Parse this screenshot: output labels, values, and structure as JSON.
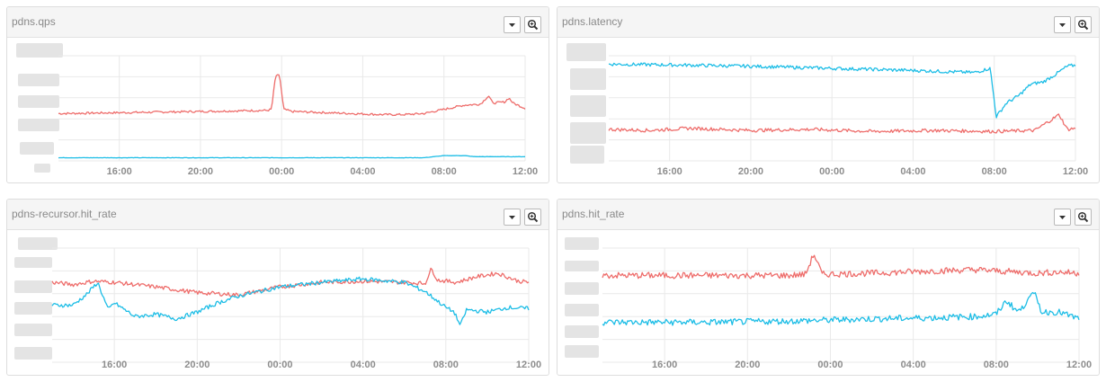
{
  "colors": {
    "series_a": "#ee6d6b",
    "series_b": "#1cbde6"
  },
  "icons": {
    "dropdown": "caret-down-icon",
    "zoom": "zoom-in-icon"
  },
  "panels": [
    {
      "title": "pdns.qps"
    },
    {
      "title": "pdns.latency"
    },
    {
      "title": "pdns-recursor.hit_rate"
    },
    {
      "title": "pdns.hit_rate"
    }
  ],
  "chart_data": [
    {
      "type": "line",
      "title": "pdns.qps",
      "x_ticks": [
        "16:00",
        "20:00",
        "00:00",
        "04:00",
        "08:00",
        "12:00"
      ],
      "x_tick_hours": [
        16,
        20,
        24,
        28,
        32,
        36
      ],
      "x_range_hours": [
        13,
        36
      ],
      "ylim": [
        0,
        100
      ],
      "y_tick_labels_visible": false,
      "grid": true,
      "series": [
        {
          "color": "#ee6d6b",
          "key_points": [
            [
              13,
              45
            ],
            [
              20,
              47
            ],
            [
              23,
              48
            ],
            [
              23.3,
              48
            ],
            [
              23.5,
              49
            ],
            [
              23.7,
              81
            ],
            [
              23.9,
              81
            ],
            [
              24.1,
              49
            ],
            [
              24.5,
              47
            ],
            [
              29,
              44
            ],
            [
              30,
              44
            ],
            [
              31,
              45
            ],
            [
              32,
              49
            ],
            [
              33,
              53
            ],
            [
              33.8,
              54
            ],
            [
              34.2,
              62
            ],
            [
              34.4,
              55
            ],
            [
              35,
              56
            ],
            [
              35.2,
              60
            ],
            [
              35.4,
              55
            ],
            [
              36,
              50
            ]
          ]
        },
        {
          "color": "#1cbde6",
          "key_points": [
            [
              13,
              3
            ],
            [
              31,
              3
            ],
            [
              32,
              5
            ],
            [
              33,
              5
            ],
            [
              33.5,
              4
            ],
            [
              36,
              4
            ]
          ]
        }
      ]
    },
    {
      "type": "line",
      "title": "pdns.latency",
      "x_ticks": [
        "16:00",
        "20:00",
        "00:00",
        "04:00",
        "08:00",
        "12:00"
      ],
      "x_tick_hours": [
        16,
        20,
        24,
        28,
        32,
        36
      ],
      "x_range_hours": [
        13,
        36
      ],
      "ylim": [
        0,
        100
      ],
      "y_tick_labels_visible": false,
      "grid": true,
      "series": [
        {
          "color": "#1cbde6",
          "key_points": [
            [
              13,
              92
            ],
            [
              17,
              91
            ],
            [
              20,
              90
            ],
            [
              24,
              88
            ],
            [
              28,
              86
            ],
            [
              31,
              84
            ],
            [
              31.8,
              88
            ],
            [
              32.1,
              42
            ],
            [
              32.6,
              55
            ],
            [
              33.2,
              62
            ],
            [
              33.8,
              73
            ],
            [
              34.4,
              75
            ],
            [
              35,
              82
            ],
            [
              35.6,
              90
            ],
            [
              36,
              91
            ]
          ]
        },
        {
          "color": "#ee6d6b",
          "key_points": [
            [
              13,
              30
            ],
            [
              15,
              29
            ],
            [
              17,
              31
            ],
            [
              20,
              29
            ],
            [
              23,
              30
            ],
            [
              26,
              28
            ],
            [
              29,
              29
            ],
            [
              32,
              28
            ],
            [
              34,
              29
            ],
            [
              35.2,
              44
            ],
            [
              35.6,
              30
            ],
            [
              36,
              31
            ]
          ]
        }
      ]
    },
    {
      "type": "line",
      "title": "pdns-recursor.hit_rate",
      "x_ticks": [
        "16:00",
        "20:00",
        "00:00",
        "04:00",
        "08:00",
        "12:00"
      ],
      "x_tick_hours": [
        16,
        20,
        24,
        28,
        32,
        36
      ],
      "x_range_hours": [
        13,
        36
      ],
      "ylim": [
        0,
        100
      ],
      "y_tick_labels_visible": false,
      "grid": true,
      "series": [
        {
          "color": "#ee6d6b",
          "key_points": [
            [
              13,
              70
            ],
            [
              14,
              68
            ],
            [
              15,
              71
            ],
            [
              16,
              70
            ],
            [
              18,
              66
            ],
            [
              20,
              61
            ],
            [
              22,
              59
            ],
            [
              24,
              66
            ],
            [
              26,
              70
            ],
            [
              28,
              71
            ],
            [
              30,
              70
            ],
            [
              31,
              69
            ],
            [
              31.3,
              82
            ],
            [
              31.6,
              72
            ],
            [
              32.5,
              70
            ],
            [
              33.5,
              75
            ],
            [
              34.5,
              78
            ],
            [
              35.5,
              71
            ],
            [
              36,
              70
            ]
          ]
        },
        {
          "color": "#1cbde6",
          "key_points": [
            [
              13,
              50
            ],
            [
              14,
              50
            ],
            [
              14.7,
              60
            ],
            [
              15.2,
              70
            ],
            [
              15.7,
              46
            ],
            [
              16,
              52
            ],
            [
              17,
              40
            ],
            [
              18,
              42
            ],
            [
              19,
              38
            ],
            [
              20,
              44
            ],
            [
              21,
              52
            ],
            [
              22,
              58
            ],
            [
              24,
              66
            ],
            [
              26,
              70
            ],
            [
              28,
              73
            ],
            [
              30,
              70
            ],
            [
              31,
              62
            ],
            [
              32,
              48
            ],
            [
              32.4,
              44
            ],
            [
              32.7,
              32
            ],
            [
              33,
              46
            ],
            [
              34,
              44
            ],
            [
              35,
              48
            ],
            [
              36,
              47
            ]
          ]
        }
      ]
    },
    {
      "type": "line",
      "title": "pdns.hit_rate",
      "x_ticks": [
        "16:00",
        "20:00",
        "00:00",
        "04:00",
        "08:00",
        "12:00"
      ],
      "x_tick_hours": [
        16,
        20,
        24,
        28,
        32,
        36
      ],
      "x_range_hours": [
        13,
        36
      ],
      "ylim": [
        0,
        100
      ],
      "y_tick_labels_visible": false,
      "grid": true,
      "series": [
        {
          "color": "#ee6d6b",
          "key_points": [
            [
              13,
              76
            ],
            [
              18,
              76
            ],
            [
              22,
              76
            ],
            [
              22.8,
              77
            ],
            [
              23.2,
              95
            ],
            [
              23.6,
              77
            ],
            [
              26,
              78
            ],
            [
              29,
              80
            ],
            [
              31,
              81
            ],
            [
              32,
              80
            ],
            [
              33,
              79
            ],
            [
              34,
              78
            ],
            [
              35,
              79
            ],
            [
              36,
              78
            ]
          ]
        },
        {
          "color": "#1cbde6",
          "key_points": [
            [
              13,
              35
            ],
            [
              18,
              35
            ],
            [
              22,
              36
            ],
            [
              26,
              38
            ],
            [
              29,
              39
            ],
            [
              31,
              40
            ],
            [
              32,
              42
            ],
            [
              32.5,
              54
            ],
            [
              33,
              45
            ],
            [
              33.3,
              47
            ],
            [
              33.6,
              60
            ],
            [
              33.9,
              58
            ],
            [
              34.2,
              44
            ],
            [
              35,
              44
            ],
            [
              36,
              38
            ]
          ]
        }
      ]
    }
  ]
}
